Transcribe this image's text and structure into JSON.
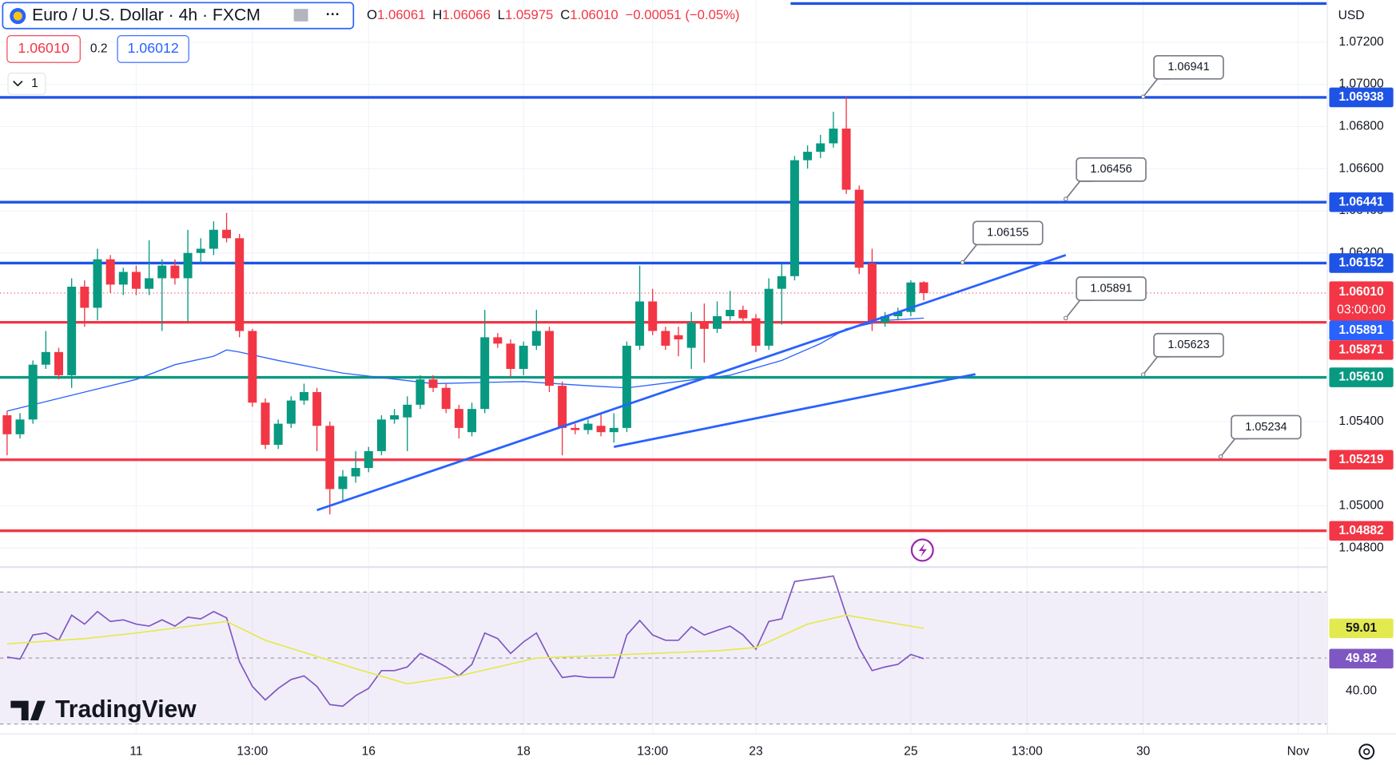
{
  "header": {
    "symbol": "Euro / U.S. Dollar · 4h · FXCM",
    "ohlc": [
      {
        "label": "O",
        "value": "1.06061"
      },
      {
        "label": "H",
        "value": "1.06066"
      },
      {
        "label": "L",
        "value": "1.05975"
      },
      {
        "label": "C",
        "value": "1.06010"
      }
    ],
    "change": "−0.00051 (−0.05%)",
    "sell": "1.06010",
    "spread": "0.2",
    "buy": "1.06012",
    "indicators": "1",
    "currency": "USD",
    "logo": "TradingView"
  },
  "chart_data": [
    {
      "type": "candlestick",
      "xlim": [
        -0.55,
        102.2
      ],
      "ylim": [
        1.0471,
        1.074
      ],
      "grid": true,
      "up_color": "#089981",
      "down_color": "#f23645",
      "xticks": [
        {
          "value": 10,
          "label": "11"
        },
        {
          "value": 19,
          "label": "13:00"
        },
        {
          "value": 28,
          "label": "16"
        },
        {
          "value": 40,
          "label": "18"
        },
        {
          "value": 50,
          "label": "13:00"
        },
        {
          "value": 58,
          "label": "23"
        },
        {
          "value": 70,
          "label": "25"
        },
        {
          "value": 79,
          "label": "13:00"
        },
        {
          "value": 88,
          "label": "30"
        },
        {
          "value": 100,
          "label": "Nov"
        }
      ],
      "yticks": [
        {
          "value": 1.072,
          "label": "1.07200"
        },
        {
          "value": 1.07,
          "label": "1.07000"
        },
        {
          "value": 1.068,
          "label": "1.06800"
        },
        {
          "value": 1.066,
          "label": "1.06600"
        },
        {
          "value": 1.064,
          "label": "1.06400"
        },
        {
          "value": 1.062,
          "label": "1.06200"
        },
        {
          "value": 1.054,
          "label": "1.05400"
        },
        {
          "value": 1.05,
          "label": "1.05000"
        },
        {
          "value": 1.048,
          "label": "1.04800"
        }
      ],
      "open": [
        1.0543,
        1.0534,
        1.0541,
        1.0567,
        1.0573,
        1.0562,
        1.0604,
        1.0594,
        1.0617,
        1.0605,
        1.0611,
        1.0603,
        1.0608,
        1.0614,
        1.0608,
        1.062,
        1.0622,
        1.0631,
        1.0627,
        1.0583,
        1.0549,
        1.0529,
        1.0539,
        1.055,
        1.0554,
        1.0538,
        1.0508,
        1.0514,
        1.0518,
        1.0526,
        1.0541,
        1.0542,
        1.0548,
        1.056,
        1.0556,
        1.0546,
        1.0535,
        1.0546,
        1.058,
        1.0577,
        1.0565,
        1.0576,
        1.0583,
        1.0557,
        1.0537,
        1.0536,
        1.0538,
        1.0535,
        1.0537,
        1.0576,
        1.0597,
        1.0583,
        1.0581,
        1.0575,
        1.0587,
        1.0584,
        1.059,
        1.0593,
        1.0589,
        1.0576,
        1.0603,
        1.0609,
        1.0664,
        1.0668,
        1.0672,
        1.0679,
        1.065,
        1.0615,
        1.0587,
        1.059,
        1.0592,
        1.06061
      ],
      "high": [
        1.0545,
        1.0544,
        1.0569,
        1.0583,
        1.0575,
        1.0608,
        1.0607,
        1.0622,
        1.0619,
        1.0613,
        1.0614,
        1.0626,
        1.0617,
        1.0617,
        1.0631,
        1.0627,
        1.0635,
        1.0639,
        1.0629,
        1.0584,
        1.0551,
        1.0541,
        1.0552,
        1.0558,
        1.0556,
        1.054,
        1.0517,
        1.0526,
        1.0528,
        1.0543,
        1.0546,
        1.0552,
        1.0562,
        1.0562,
        1.0558,
        1.0548,
        1.0549,
        1.0593,
        1.0582,
        1.0579,
        1.0578,
        1.0593,
        1.0585,
        1.0559,
        1.0539,
        1.0541,
        1.0544,
        1.0544,
        1.0578,
        1.0614,
        1.0603,
        1.0585,
        1.0585,
        1.0592,
        1.0596,
        1.0597,
        1.0602,
        1.0595,
        1.0591,
        1.0608,
        1.0615,
        1.0666,
        1.0671,
        1.0676,
        1.0687,
        1.0694,
        1.0652,
        1.0622,
        1.0592,
        1.0594,
        1.0607,
        1.06066
      ],
      "low": [
        1.0524,
        1.0532,
        1.0539,
        1.0565,
        1.056,
        1.0556,
        1.0585,
        1.0588,
        1.0601,
        1.06,
        1.06,
        1.06,
        1.0583,
        1.0605,
        1.0587,
        1.0615,
        1.0619,
        1.0625,
        1.058,
        1.0547,
        1.0527,
        1.0527,
        1.0537,
        1.0548,
        1.0526,
        1.0496,
        1.0502,
        1.0511,
        1.0516,
        1.0524,
        1.0539,
        1.0526,
        1.0546,
        1.0554,
        1.0544,
        1.0532,
        1.0533,
        1.0544,
        1.0575,
        1.0561,
        1.0562,
        1.0574,
        1.0554,
        1.0524,
        1.0534,
        1.0534,
        1.0533,
        1.053,
        1.0535,
        1.0574,
        1.0581,
        1.0574,
        1.0571,
        1.0565,
        1.0568,
        1.0582,
        1.0588,
        1.0587,
        1.0573,
        1.0574,
        1.0586,
        1.0607,
        1.066,
        1.0665,
        1.067,
        1.0648,
        1.061,
        1.0583,
        1.0585,
        1.0588,
        1.059,
        1.05975
      ],
      "close": [
        1.0534,
        1.0541,
        1.0567,
        1.0573,
        1.0562,
        1.0604,
        1.0594,
        1.0617,
        1.0605,
        1.0611,
        1.0603,
        1.0608,
        1.0614,
        1.0608,
        1.062,
        1.0622,
        1.0631,
        1.0627,
        1.0583,
        1.0549,
        1.0529,
        1.0539,
        1.055,
        1.0554,
        1.0538,
        1.0508,
        1.0514,
        1.0518,
        1.0526,
        1.0541,
        1.0543,
        1.0548,
        1.056,
        1.0556,
        1.0546,
        1.0537,
        1.0546,
        1.058,
        1.0577,
        1.0565,
        1.0576,
        1.0583,
        1.0557,
        1.0537,
        1.0536,
        1.0539,
        1.0535,
        1.0537,
        1.0576,
        1.0597,
        1.0583,
        1.0576,
        1.0579,
        1.0587,
        1.0584,
        1.059,
        1.0593,
        1.0589,
        1.0576,
        1.0603,
        1.0609,
        1.0664,
        1.0668,
        1.0672,
        1.0679,
        1.065,
        1.0613,
        1.0587,
        1.059,
        1.0592,
        1.0606,
        1.0601
      ],
      "ma": {
        "color": "#2962ff",
        "x": [
          0,
          2,
          6,
          10,
          13,
          16,
          17,
          18,
          21,
          26,
          33,
          40,
          45,
          48,
          52,
          56,
          60,
          63,
          65,
          68,
          71
        ],
        "values": [
          1.0545,
          1.0548,
          1.0554,
          1.056,
          1.0567,
          1.0571,
          1.0574,
          1.0573,
          1.0569,
          1.0563,
          1.0558,
          1.0559,
          1.0557,
          1.0556,
          1.0559,
          1.0562,
          1.0569,
          1.0577,
          1.0584,
          1.0588,
          1.05891
        ]
      },
      "last_price": {
        "value": 1.0601,
        "label": "1.06010",
        "countdown": "03:00:00",
        "color": "#f23645"
      },
      "levels": [
        {
          "value": 1.06938,
          "color": "#1e53e5"
        },
        {
          "value": 1.06441,
          "color": "#1e53e5"
        },
        {
          "value": 1.06152,
          "color": "#1e53e5"
        },
        {
          "value": 1.05871,
          "color": "#f23645"
        },
        {
          "value": 1.0561,
          "label": "1.05610",
          "color": "#089981"
        },
        {
          "value": 1.05219,
          "color": "#f23645"
        },
        {
          "value": 1.04882,
          "color": "#f23645"
        }
      ],
      "trendlines": [
        {
          "color": "#2962ff",
          "x": [
            24,
            82
          ],
          "values": [
            1.0498,
            1.0619
          ]
        },
        {
          "color": "#2962ff",
          "x": [
            47,
            75
          ],
          "values": [
            1.0528,
            1.05625
          ]
        }
      ],
      "callouts": [
        {
          "value": 1.06941,
          "x": 88
        },
        {
          "value": 1.06456,
          "x": 82
        },
        {
          "value": 1.06155,
          "x": 74
        },
        {
          "value": 1.05891,
          "x": 82
        },
        {
          "value": 1.05623,
          "x": 88
        },
        {
          "value": 1.05234,
          "x": 94
        }
      ]
    },
    {
      "type": "line",
      "xlim": [
        -0.55,
        102.2
      ],
      "ylim": [
        29.2,
        77.6
      ],
      "yticks": [
        {
          "value": 40,
          "label": "40.00"
        }
      ],
      "series": [
        {
          "color": "#7e57c2",
          "values": [
            50.3,
            49.7,
            57.0,
            57.6,
            55.4,
            63.0,
            60.3,
            64.1,
            61.1,
            61.6,
            60.3,
            59.7,
            61.6,
            59.7,
            62.4,
            61.9,
            64.1,
            62.2,
            48.9,
            41.4,
            37.3,
            40.8,
            43.5,
            44.6,
            41.4,
            35.9,
            35.4,
            38.6,
            40.8,
            46.2,
            46.2,
            47.3,
            51.4,
            49.5,
            47.3,
            44.6,
            48.1,
            57.6,
            55.9,
            51.4,
            54.9,
            57.6,
            50.0,
            44.1,
            44.6,
            44.1,
            44.1,
            44.1,
            57.0,
            61.4,
            57.0,
            55.4,
            55.4,
            59.5,
            57.0,
            58.4,
            59.7,
            57.0,
            52.7,
            61.1,
            61.9,
            73.2,
            73.8,
            74.3,
            74.9,
            63.0,
            53.0,
            46.2,
            47.3,
            48.1,
            51.1,
            49.82
          ],
          "label_text_color": "#ffffff"
        },
        {
          "color": "#e3ea4f",
          "x": [
            0,
            6,
            10,
            17,
            20,
            27,
            31,
            35,
            41,
            48,
            55,
            58,
            62,
            65,
            71
          ],
          "values": [
            54.3,
            55.9,
            57.6,
            61.1,
            55.4,
            46.8,
            42.2,
            44.6,
            50.0,
            51.1,
            52.2,
            53.2,
            60.3,
            63.0,
            59.01
          ],
          "label_text_color": "#131722"
        }
      ]
    }
  ]
}
